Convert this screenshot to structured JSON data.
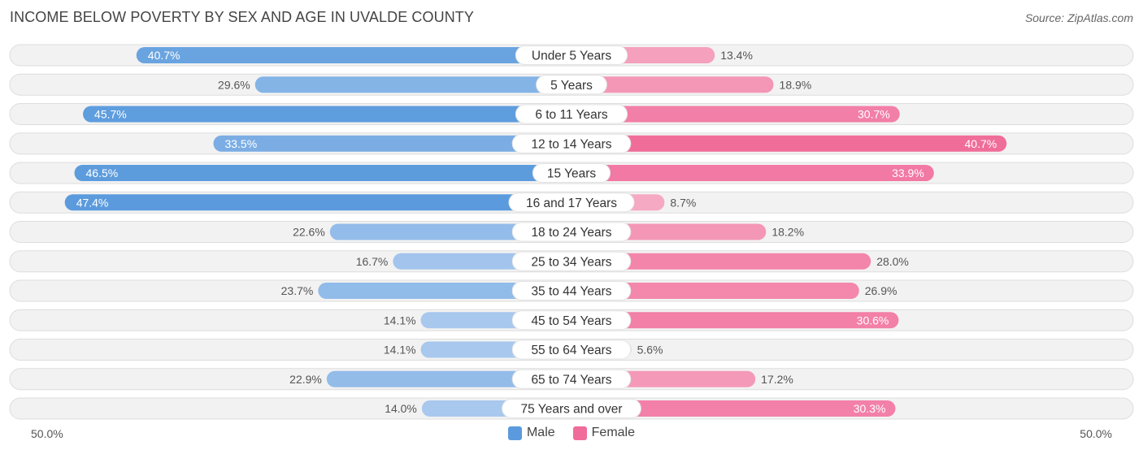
{
  "title": "INCOME BELOW POVERTY BY SEX AND AGE IN UVALDE COUNTY",
  "source": "Source: ZipAtlas.com",
  "colors": {
    "male_strong": "#5b9bdd",
    "male_light": "#a8c8ee",
    "female_strong": "#f06c9a",
    "female_light": "#f7b0c8",
    "track": "#f2f2f2",
    "track_border": "#dddddd"
  },
  "axis": {
    "left_label": "50.0%",
    "right_label": "50.0%"
  },
  "legend": {
    "male": "Male",
    "female": "Female"
  },
  "chart_data": {
    "type": "bar",
    "orientation": "horizontal-diverging",
    "title": "INCOME BELOW POVERTY BY SEX AND AGE IN UVALDE COUNTY",
    "xlim": [
      -50,
      50
    ],
    "categories": [
      "Under 5 Years",
      "5 Years",
      "6 to 11 Years",
      "12 to 14 Years",
      "15 Years",
      "16 and 17 Years",
      "18 to 24 Years",
      "25 to 34 Years",
      "35 to 44 Years",
      "45 to 54 Years",
      "55 to 64 Years",
      "65 to 74 Years",
      "75 Years and over"
    ],
    "series": [
      {
        "name": "Male",
        "values": [
          40.7,
          29.6,
          45.7,
          33.5,
          46.5,
          47.4,
          22.6,
          16.7,
          23.7,
          14.1,
          14.1,
          22.9,
          14.0
        ],
        "labels": [
          "40.7%",
          "29.6%",
          "45.7%",
          "33.5%",
          "46.5%",
          "47.4%",
          "22.6%",
          "16.7%",
          "23.7%",
          "14.1%",
          "14.1%",
          "22.9%",
          "14.0%"
        ]
      },
      {
        "name": "Female",
        "values": [
          13.4,
          18.9,
          30.7,
          40.7,
          33.9,
          8.7,
          18.2,
          28.0,
          26.9,
          30.6,
          5.6,
          17.2,
          30.3
        ],
        "labels": [
          "13.4%",
          "18.9%",
          "30.7%",
          "40.7%",
          "33.9%",
          "8.7%",
          "18.2%",
          "28.0%",
          "26.9%",
          "30.6%",
          "5.6%",
          "17.2%",
          "30.3%"
        ]
      }
    ]
  }
}
